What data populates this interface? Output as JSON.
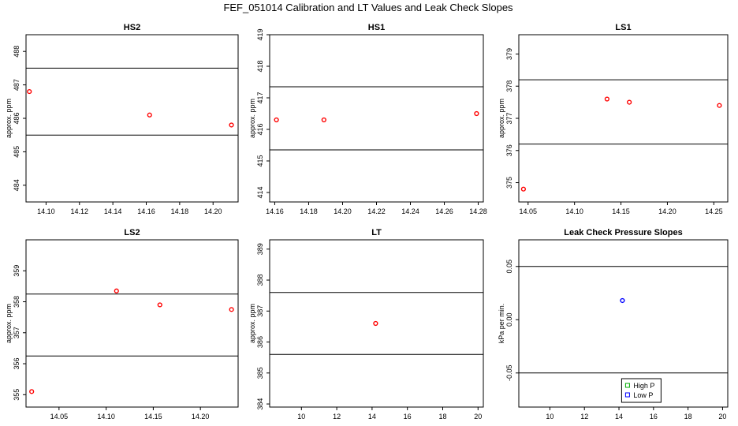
{
  "figure": {
    "title": "FEF_051014  Calibration and LT Values and Leak Check Slopes"
  },
  "chart_data": [
    {
      "type": "scatter",
      "title": "HS2",
      "ylabel": "approx. ppm",
      "xlabel": "",
      "xlim": [
        14.088,
        14.215
      ],
      "ylim": [
        483.5,
        488.5
      ],
      "xticks": [
        14.1,
        14.12,
        14.14,
        14.16,
        14.18,
        14.2
      ],
      "xtick_labels": [
        "14.10",
        "14.12",
        "14.14",
        "14.16",
        "14.18",
        "14.20"
      ],
      "yticks": [
        484,
        485,
        486,
        487,
        488
      ],
      "ytick_labels": [
        "484",
        "485",
        "486",
        "487",
        "488"
      ],
      "hlines": [
        485.5,
        487.5
      ],
      "series": [
        {
          "color": "#ff0000",
          "points": [
            [
              14.09,
              486.8
            ],
            [
              14.162,
              486.1
            ],
            [
              14.211,
              485.8
            ]
          ]
        }
      ]
    },
    {
      "type": "scatter",
      "title": "HS1",
      "ylabel": "approx. ppm",
      "xlabel": "",
      "xlim": [
        14.157,
        14.283
      ],
      "ylim": [
        413.7,
        419.0
      ],
      "xticks": [
        14.16,
        14.18,
        14.2,
        14.22,
        14.24,
        14.26,
        14.28
      ],
      "xtick_labels": [
        "14.16",
        "14.18",
        "14.20",
        "14.22",
        "14.24",
        "14.26",
        "14.28"
      ],
      "yticks": [
        414,
        415,
        416,
        417,
        418,
        419
      ],
      "ytick_labels": [
        "414",
        "415",
        "416",
        "417",
        "418",
        "419"
      ],
      "hlines": [
        415.35,
        417.35
      ],
      "series": [
        {
          "color": "#ff0000",
          "points": [
            [
              14.161,
              416.3
            ],
            [
              14.189,
              416.3
            ],
            [
              14.279,
              416.5
            ]
          ]
        }
      ]
    },
    {
      "type": "scatter",
      "title": "LS1",
      "ylabel": "approx. ppm",
      "xlabel": "",
      "xlim": [
        14.04,
        14.265
      ],
      "ylim": [
        374.4,
        379.6
      ],
      "xticks": [
        14.05,
        14.1,
        14.15,
        14.2,
        14.25
      ],
      "xtick_labels": [
        "14.05",
        "14.10",
        "14.15",
        "14.20",
        "14.25"
      ],
      "yticks": [
        375,
        376,
        377,
        378,
        379
      ],
      "ytick_labels": [
        "375",
        "376",
        "377",
        "378",
        "379"
      ],
      "hlines": [
        376.2,
        378.2
      ],
      "series": [
        {
          "color": "#ff0000",
          "points": [
            [
              14.045,
              374.8
            ],
            [
              14.135,
              377.6
            ],
            [
              14.159,
              377.5
            ],
            [
              14.256,
              377.4
            ]
          ]
        }
      ]
    },
    {
      "type": "scatter",
      "title": "LS2",
      "ylabel": "approx. ppm",
      "xlabel": "",
      "xlim": [
        14.015,
        14.24
      ],
      "ylim": [
        354.6,
        360.0
      ],
      "xticks": [
        14.05,
        14.1,
        14.15,
        14.2
      ],
      "xtick_labels": [
        "14.05",
        "14.10",
        "14.15",
        "14.20"
      ],
      "yticks": [
        355,
        356,
        357,
        358,
        359
      ],
      "ytick_labels": [
        "355",
        "356",
        "357",
        "358",
        "359"
      ],
      "hlines": [
        356.25,
        358.25
      ],
      "series": [
        {
          "color": "#ff0000",
          "points": [
            [
              14.021,
              355.1
            ],
            [
              14.111,
              358.35
            ],
            [
              14.157,
              357.9
            ],
            [
              14.233,
              357.75
            ]
          ]
        }
      ]
    },
    {
      "type": "scatter",
      "title": "LT",
      "ylabel": "approx. ppm",
      "xlabel": "",
      "xlim": [
        8.2,
        20.3
      ],
      "ylim": [
        383.9,
        389.3
      ],
      "xticks": [
        10,
        12,
        14,
        16,
        18,
        20
      ],
      "xtick_labels": [
        "10",
        "12",
        "14",
        "16",
        "18",
        "20"
      ],
      "yticks": [
        384,
        385,
        386,
        387,
        388,
        389
      ],
      "ytick_labels": [
        "384",
        "385",
        "386",
        "387",
        "388",
        "389"
      ],
      "hlines": [
        385.6,
        387.6
      ],
      "series": [
        {
          "color": "#ff0000",
          "points": [
            [
              14.2,
              386.6
            ]
          ]
        }
      ]
    },
    {
      "type": "scatter",
      "title": "Leak Check Pressure Slopes",
      "ylabel": "kPa per min.",
      "xlabel": "",
      "xlim": [
        8.2,
        20.3
      ],
      "ylim": [
        -0.082,
        0.075
      ],
      "xticks": [
        10,
        12,
        14,
        16,
        18,
        20
      ],
      "xtick_labels": [
        "10",
        "12",
        "14",
        "16",
        "18",
        "20"
      ],
      "yticks": [
        -0.05,
        0.0,
        0.05
      ],
      "ytick_labels": [
        "-0.05",
        "0.00",
        "0.05"
      ],
      "hlines": [
        -0.05,
        0.05
      ],
      "series": [
        {
          "name": "High P",
          "color": "#00aa00",
          "marker": "square",
          "points": []
        },
        {
          "name": "Low P",
          "color": "#0000ff",
          "marker": "circle",
          "points": [
            [
              14.2,
              0.018
            ]
          ]
        }
      ],
      "legend": {
        "position": "bottom-center",
        "entries": [
          {
            "label": "High P",
            "color": "#00aa00"
          },
          {
            "label": "Low P",
            "color": "#0000ff"
          }
        ]
      }
    }
  ]
}
